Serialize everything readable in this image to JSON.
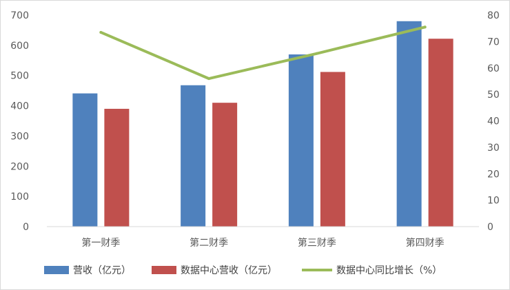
{
  "chart_data": {
    "type": "bar",
    "categories": [
      "第一财季",
      "第二财季",
      "第三财季",
      "第四财季"
    ],
    "series": [
      {
        "name": "营收（亿元）",
        "type": "bar",
        "axis": "left",
        "color": "#4f81bd",
        "values": [
          441,
          468,
          570,
          680
        ]
      },
      {
        "name": "数据中心营收（亿元）",
        "type": "bar",
        "axis": "left",
        "color": "#c0504d",
        "values": [
          390,
          410,
          512,
          622
        ]
      },
      {
        "name": "数据中心同比增长（%）",
        "type": "line",
        "axis": "right",
        "color": "#9bbb59",
        "values": [
          73.5,
          56,
          65.5,
          75.5
        ]
      }
    ],
    "y_left": {
      "min": 0,
      "max": 700,
      "ticks": [
        0,
        100,
        200,
        300,
        400,
        500,
        600,
        700
      ]
    },
    "y_right": {
      "min": 0,
      "max": 80,
      "ticks": [
        0,
        10,
        20,
        30,
        40,
        50,
        60,
        70,
        80
      ]
    },
    "legend_position": "bottom",
    "grid": false
  }
}
